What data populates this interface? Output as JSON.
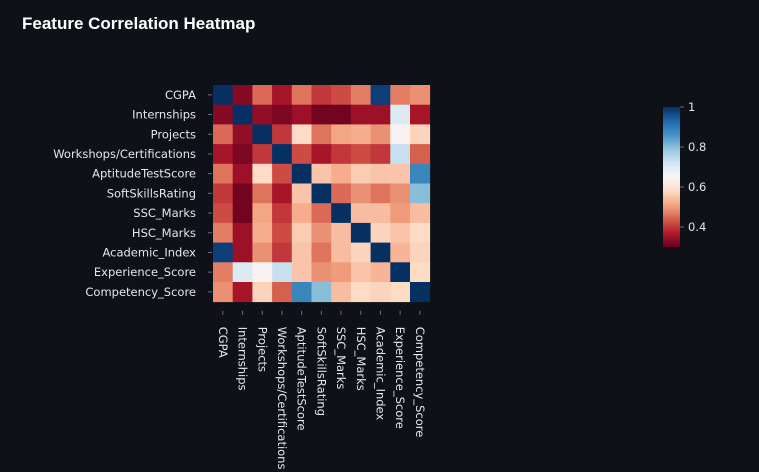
{
  "title": "Feature Correlation Heatmap",
  "chart_data": {
    "type": "heatmap",
    "title": "Feature Correlation Heatmap",
    "labels": [
      "CGPA",
      "Internships",
      "Projects",
      "Workshops/Certifications",
      "AptitudeTestScore",
      "SoftSkillsRating",
      "SSC_Marks",
      "HSC_Marks",
      "Academic_Index",
      "Experience_Score",
      "Competency_Score"
    ],
    "matrix": [
      [
        1.0,
        0.33,
        0.45,
        0.36,
        0.46,
        0.4,
        0.42,
        0.47,
        0.98,
        0.47,
        0.49
      ],
      [
        0.33,
        1.0,
        0.34,
        0.32,
        0.35,
        0.31,
        0.31,
        0.35,
        0.35,
        0.7,
        0.36
      ],
      [
        0.45,
        0.34,
        1.0,
        0.4,
        0.58,
        0.46,
        0.51,
        0.52,
        0.49,
        0.64,
        0.57
      ],
      [
        0.36,
        0.32,
        0.4,
        1.0,
        0.42,
        0.36,
        0.4,
        0.42,
        0.4,
        0.73,
        0.44
      ],
      [
        0.46,
        0.35,
        0.58,
        0.42,
        1.0,
        0.55,
        0.52,
        0.56,
        0.55,
        0.55,
        0.88
      ],
      [
        0.4,
        0.31,
        0.46,
        0.36,
        0.55,
        1.0,
        0.45,
        0.49,
        0.46,
        0.49,
        0.8
      ],
      [
        0.42,
        0.31,
        0.51,
        0.4,
        0.52,
        0.45,
        1.0,
        0.54,
        0.54,
        0.5,
        0.54
      ],
      [
        0.47,
        0.35,
        0.52,
        0.42,
        0.56,
        0.49,
        0.54,
        1.0,
        0.57,
        0.55,
        0.58
      ],
      [
        0.98,
        0.35,
        0.49,
        0.4,
        0.55,
        0.46,
        0.54,
        0.57,
        1.0,
        0.53,
        0.57
      ],
      [
        0.47,
        0.7,
        0.64,
        0.73,
        0.55,
        0.49,
        0.5,
        0.55,
        0.53,
        1.0,
        0.58
      ],
      [
        0.49,
        0.36,
        0.57,
        0.44,
        0.88,
        0.8,
        0.54,
        0.58,
        0.57,
        0.58,
        1.0
      ]
    ],
    "colormap": "RdBu",
    "vmin": 0.3,
    "vmax": 1.0,
    "colorbar_ticks": [
      "0.4",
      "0.6",
      "0.8",
      "1"
    ],
    "colorbar_tick_values": [
      0.4,
      0.6,
      0.8,
      1.0
    ],
    "background": "#0e1117",
    "text_color": "#e6e6e6"
  }
}
